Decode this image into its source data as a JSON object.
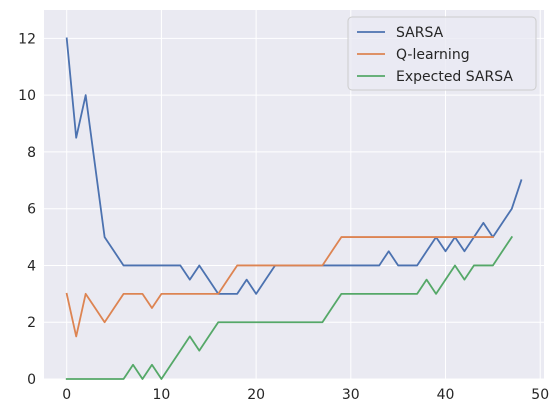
{
  "chart_data": {
    "type": "line",
    "title": "",
    "xlabel": "",
    "ylabel": "",
    "xlim": [
      -2.4,
      50.4
    ],
    "ylim": [
      0,
      13
    ],
    "x_ticks": [
      0,
      10,
      20,
      30,
      40,
      50
    ],
    "y_ticks": [
      0,
      2,
      4,
      6,
      8,
      10,
      12
    ],
    "x_tick_labels": [
      "0",
      "10",
      "20",
      "30",
      "40",
      "50"
    ],
    "y_tick_labels": [
      "0",
      "2",
      "4",
      "6",
      "8",
      "10",
      "12"
    ],
    "grid": true,
    "legend_position": "top-right",
    "background_color": "#eaeaf2",
    "grid_color": "#ffffff",
    "series": [
      {
        "name": "SARSA",
        "color": "#4c72b0",
        "x": [
          0,
          1,
          2,
          3,
          4,
          5,
          6,
          7,
          8,
          9,
          10,
          11,
          12,
          13,
          14,
          15,
          16,
          17,
          18,
          19,
          20,
          21,
          22,
          23,
          24,
          25,
          26,
          27,
          28,
          29,
          30,
          31,
          32,
          33,
          34,
          35,
          36,
          37,
          38,
          39,
          40,
          41,
          42,
          43,
          44,
          45,
          46,
          47,
          48
        ],
        "y": [
          12,
          8.5,
          10,
          7.5,
          5,
          4.5,
          4,
          4,
          4,
          4,
          4,
          4,
          4,
          3.5,
          4,
          3.5,
          3,
          3,
          3,
          3.5,
          3,
          3.5,
          4,
          4,
          4,
          4,
          4,
          4,
          4,
          4,
          4,
          4,
          4,
          4,
          4.5,
          4,
          4,
          4,
          4.5,
          5,
          4.5,
          5,
          4.5,
          5,
          5.5,
          5,
          5.5,
          6,
          7
        ]
      },
      {
        "name": "Q-learning",
        "color": "#dd8452",
        "x": [
          0,
          1,
          2,
          3,
          4,
          5,
          6,
          7,
          8,
          9,
          10,
          11,
          12,
          13,
          14,
          15,
          16,
          17,
          18,
          19,
          20,
          21,
          22,
          23,
          24,
          25,
          26,
          27,
          28,
          29,
          30,
          31,
          32,
          33,
          34,
          35,
          36,
          37,
          38,
          39,
          40,
          41,
          42,
          43,
          44,
          45
        ],
        "y": [
          3,
          1.5,
          3,
          2.5,
          2,
          2.5,
          3,
          3,
          3,
          2.5,
          3,
          3,
          3,
          3,
          3,
          3,
          3,
          3.5,
          4,
          4,
          4,
          4,
          4,
          4,
          4,
          4,
          4,
          4,
          4.5,
          5,
          5,
          5,
          5,
          5,
          5,
          5,
          5,
          5,
          5,
          5,
          5,
          5,
          5,
          5,
          5,
          5
        ]
      },
      {
        "name": "Expected SARSA",
        "color": "#55a868",
        "x": [
          0,
          1,
          2,
          3,
          4,
          5,
          6,
          7,
          8,
          9,
          10,
          11,
          12,
          13,
          14,
          15,
          16,
          17,
          18,
          19,
          20,
          21,
          22,
          23,
          24,
          25,
          26,
          27,
          28,
          29,
          30,
          31,
          32,
          33,
          34,
          35,
          36,
          37,
          38,
          39,
          40,
          41,
          42,
          43,
          44,
          45,
          46,
          47
        ],
        "y": [
          0,
          0,
          0,
          0,
          0,
          0,
          0,
          0.5,
          0,
          0.5,
          0,
          0.5,
          1,
          1.5,
          1,
          1.5,
          2,
          2,
          2,
          2,
          2,
          2,
          2,
          2,
          2,
          2,
          2,
          2,
          2.5,
          3,
          3,
          3,
          3,
          3,
          3,
          3,
          3,
          3,
          3.5,
          3,
          3.5,
          4,
          3.5,
          4,
          4,
          4,
          4.5,
          5
        ]
      }
    ]
  }
}
